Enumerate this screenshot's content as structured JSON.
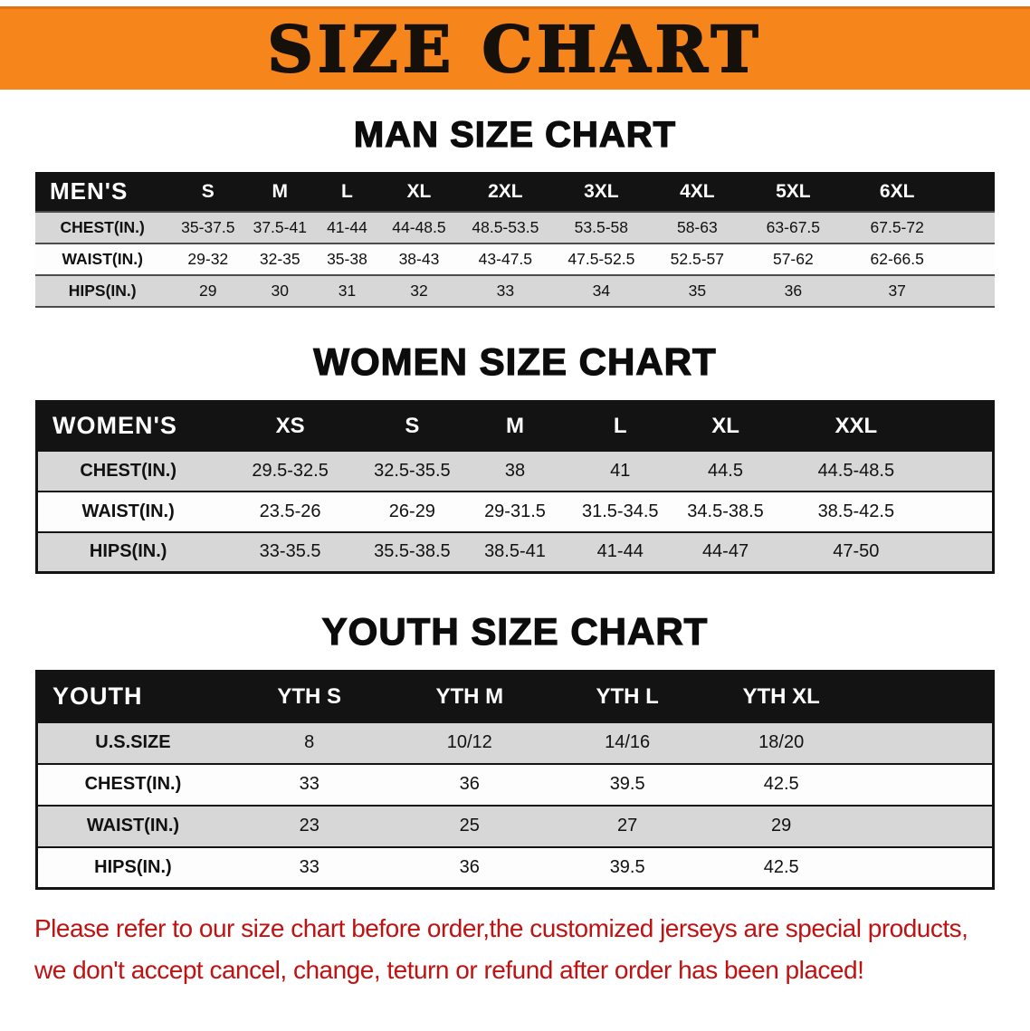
{
  "banner": {
    "title": "SIZE CHART",
    "bg_color": "#f6861c",
    "text_color": "#16100a"
  },
  "sections": [
    {
      "heading": "MAN SIZE CHART",
      "table": {
        "header": [
          "MEN'S",
          "S",
          "M",
          "L",
          "XL",
          "2XL",
          "3XL",
          "4XL",
          "5XL",
          "6XL"
        ],
        "rows": [
          [
            "CHEST(IN.)",
            "35-37.5",
            "37.5-41",
            "41-44",
            "44-48.5",
            "48.5-53.5",
            "53.5-58",
            "58-63",
            "63-67.5",
            "67.5-72"
          ],
          [
            "WAIST(IN.)",
            "29-32",
            "32-35",
            "35-38",
            "38-43",
            "43-47.5",
            "47.5-52.5",
            "52.5-57",
            "57-62",
            "62-66.5"
          ],
          [
            "HIPS(IN.)",
            "29",
            "30",
            "31",
            "32",
            "33",
            "34",
            "35",
            "36",
            "37"
          ]
        ]
      }
    },
    {
      "heading": "WOMEN SIZE CHART",
      "table": {
        "header": [
          "WOMEN'S",
          "XS",
          "S",
          "M",
          "L",
          "XL",
          "XXL"
        ],
        "rows": [
          [
            "CHEST(IN.)",
            "29.5-32.5",
            "32.5-35.5",
            "38",
            "41",
            "44.5",
            "44.5-48.5"
          ],
          [
            "WAIST(IN.)",
            "23.5-26",
            "26-29",
            "29-31.5",
            "31.5-34.5",
            "34.5-38.5",
            "38.5-42.5"
          ],
          [
            "HIPS(IN.)",
            "33-35.5",
            "35.5-38.5",
            "38.5-41",
            "41-44",
            "44-47",
            "47-50"
          ]
        ]
      }
    },
    {
      "heading": "YOUTH SIZE CHART",
      "table": {
        "header": [
          "YOUTH",
          "YTH S",
          "YTH M",
          "YTH L",
          "YTH XL"
        ],
        "rows": [
          [
            "U.S.SIZE",
            "8",
            "10/12",
            "14/16",
            "18/20"
          ],
          [
            "CHEST(IN.)",
            "33",
            "36",
            "39.5",
            "42.5"
          ],
          [
            "WAIST(IN.)",
            "23",
            "25",
            "27",
            "29"
          ],
          [
            "HIPS(IN.)",
            "33",
            "36",
            "39.5",
            "42.5"
          ]
        ]
      }
    }
  ],
  "disclaimer": {
    "color": "#c01212",
    "line1": "Please refer to our size chart before order,the customized jerseys are special products,",
    "line2": "we don't accept cancel, change, teturn or refund after order has been placed!"
  }
}
